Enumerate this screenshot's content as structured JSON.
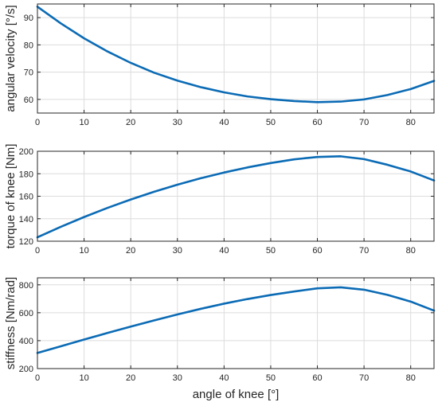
{
  "chart_data": [
    {
      "type": "line",
      "ylabel": "angular velocity [°/s]",
      "xlim": [
        0,
        85
      ],
      "ylim": [
        55,
        95
      ],
      "xticks": [
        0,
        10,
        20,
        30,
        40,
        50,
        60,
        70,
        80
      ],
      "yticks": [
        60,
        70,
        80,
        90
      ],
      "grid": true,
      "color": "#0b6bb5",
      "series": [
        {
          "x": [
            0,
            5,
            10,
            15,
            20,
            25,
            30,
            35,
            40,
            45,
            50,
            55,
            60,
            65,
            70,
            75,
            80,
            85
          ],
          "y": [
            94.0,
            87.9,
            82.4,
            77.6,
            73.4,
            69.8,
            66.9,
            64.5,
            62.6,
            61.1,
            60.1,
            59.4,
            59.0,
            59.2,
            60.0,
            61.6,
            63.8,
            66.8
          ]
        }
      ]
    },
    {
      "type": "line",
      "ylabel": "torque of knee [Nm]",
      "xlim": [
        0,
        85
      ],
      "ylim": [
        120,
        200
      ],
      "xticks": [
        0,
        10,
        20,
        30,
        40,
        50,
        60,
        70,
        80
      ],
      "yticks": [
        120,
        140,
        160,
        180,
        200
      ],
      "grid": true,
      "color": "#0b6bb5",
      "series": [
        {
          "x": [
            0,
            5,
            10,
            15,
            20,
            25,
            30,
            35,
            40,
            45,
            50,
            55,
            60,
            65,
            70,
            75,
            80,
            85
          ],
          "y": [
            123.5,
            132.8,
            141.5,
            149.6,
            157.1,
            164.0,
            170.3,
            176.0,
            181.1,
            185.6,
            189.5,
            192.8,
            194.9,
            195.5,
            193.0,
            188.0,
            182.0,
            174.0
          ]
        }
      ]
    },
    {
      "type": "line",
      "ylabel": "stiffness [Nm/rad]",
      "xlabel": "angle of knee [°]",
      "xlim": [
        0,
        85
      ],
      "ylim": [
        200,
        850
      ],
      "xticks": [
        0,
        10,
        20,
        30,
        40,
        50,
        60,
        70,
        80
      ],
      "yticks": [
        200,
        400,
        600,
        800
      ],
      "grid": true,
      "color": "#0b6bb5",
      "series": [
        {
          "x": [
            0,
            5,
            10,
            15,
            20,
            25,
            30,
            35,
            40,
            45,
            50,
            55,
            60,
            65,
            70,
            75,
            80,
            85
          ],
          "y": [
            312,
            360,
            408,
            455,
            501,
            545,
            588,
            628,
            665,
            698,
            727,
            752,
            775,
            782,
            765,
            728,
            680,
            615
          ]
        }
      ]
    }
  ]
}
